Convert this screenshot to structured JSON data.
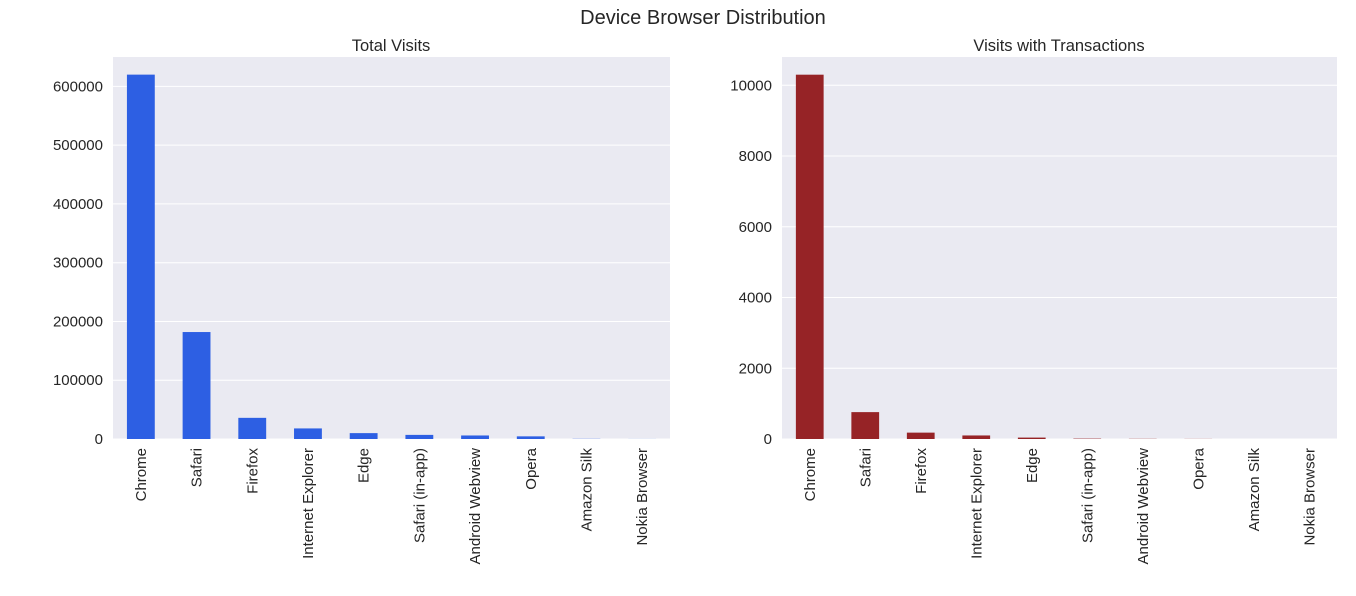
{
  "figure": {
    "title": "Device Browser Distribution"
  },
  "chart_data": [
    {
      "type": "bar",
      "title": "Total Visits",
      "xlabel": "",
      "ylabel": "",
      "categories": [
        "Chrome",
        "Safari",
        "Firefox",
        "Internet Explorer",
        "Edge",
        "Safari (in-app)",
        "Android Webview",
        "Opera",
        "Amazon Silk",
        "Nokia Browser"
      ],
      "values": [
        620000,
        182000,
        36000,
        18000,
        10000,
        7000,
        6000,
        4500,
        300,
        100
      ],
      "ylim": [
        0,
        650000
      ],
      "yticks": [
        0,
        100000,
        200000,
        300000,
        400000,
        500000,
        600000
      ],
      "ytick_labels": [
        "0",
        "100000",
        "200000",
        "300000",
        "400000",
        "500000",
        "600000"
      ],
      "color": "#2d5fe3",
      "grid": true,
      "background": "#eaeaf2"
    },
    {
      "type": "bar",
      "title": "Visits with Transactions",
      "xlabel": "",
      "ylabel": "",
      "categories": [
        "Chrome",
        "Safari",
        "Firefox",
        "Internet Explorer",
        "Edge",
        "Safari (in-app)",
        "Android Webview",
        "Opera",
        "Amazon Silk",
        "Nokia Browser"
      ],
      "values": [
        10300,
        760,
        180,
        100,
        40,
        10,
        5,
        3,
        0,
        0
      ],
      "ylim": [
        0,
        10800
      ],
      "yticks": [
        0,
        2000,
        4000,
        6000,
        8000,
        10000
      ],
      "ytick_labels": [
        "0",
        "2000",
        "4000",
        "6000",
        "8000",
        "10000"
      ],
      "color": "#962326",
      "grid": true,
      "background": "#eaeaf2"
    }
  ]
}
